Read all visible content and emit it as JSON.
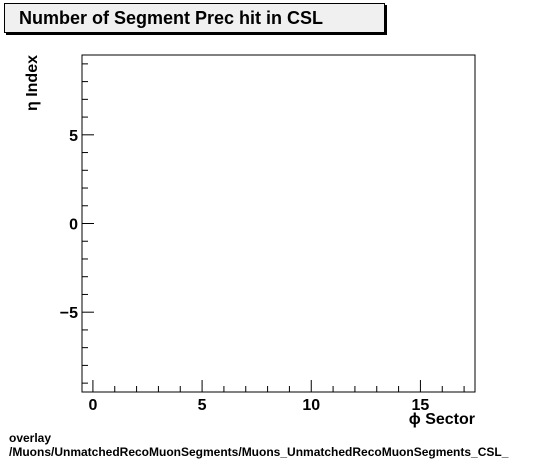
{
  "title": "Number of Segment Prec hit in CSL",
  "footer": {
    "line1": "overlay",
    "line2": "/Muons/UnmatchedRecoMuonSegments/Muons_UnmatchedRecoMuonSegments_CSL_"
  },
  "chart_data": {
    "type": "heatmap",
    "title": "Number of Segment Prec hit in CSL",
    "xlabel": "ϕ Sector",
    "ylabel": "η Index",
    "xlim": [
      -0.5,
      17.5
    ],
    "ylim": [
      -9.5,
      9.5
    ],
    "x_ticks": [
      {
        "value": 0,
        "label": "0"
      },
      {
        "value": 5,
        "label": "5"
      },
      {
        "value": 10,
        "label": "10"
      },
      {
        "value": 15,
        "label": "15"
      }
    ],
    "y_ticks": [
      {
        "value": -5,
        "label": "−5"
      },
      {
        "value": 0,
        "label": "0"
      },
      {
        "value": 5,
        "label": "5"
      }
    ],
    "values": [],
    "grid": false,
    "legend": "none"
  }
}
